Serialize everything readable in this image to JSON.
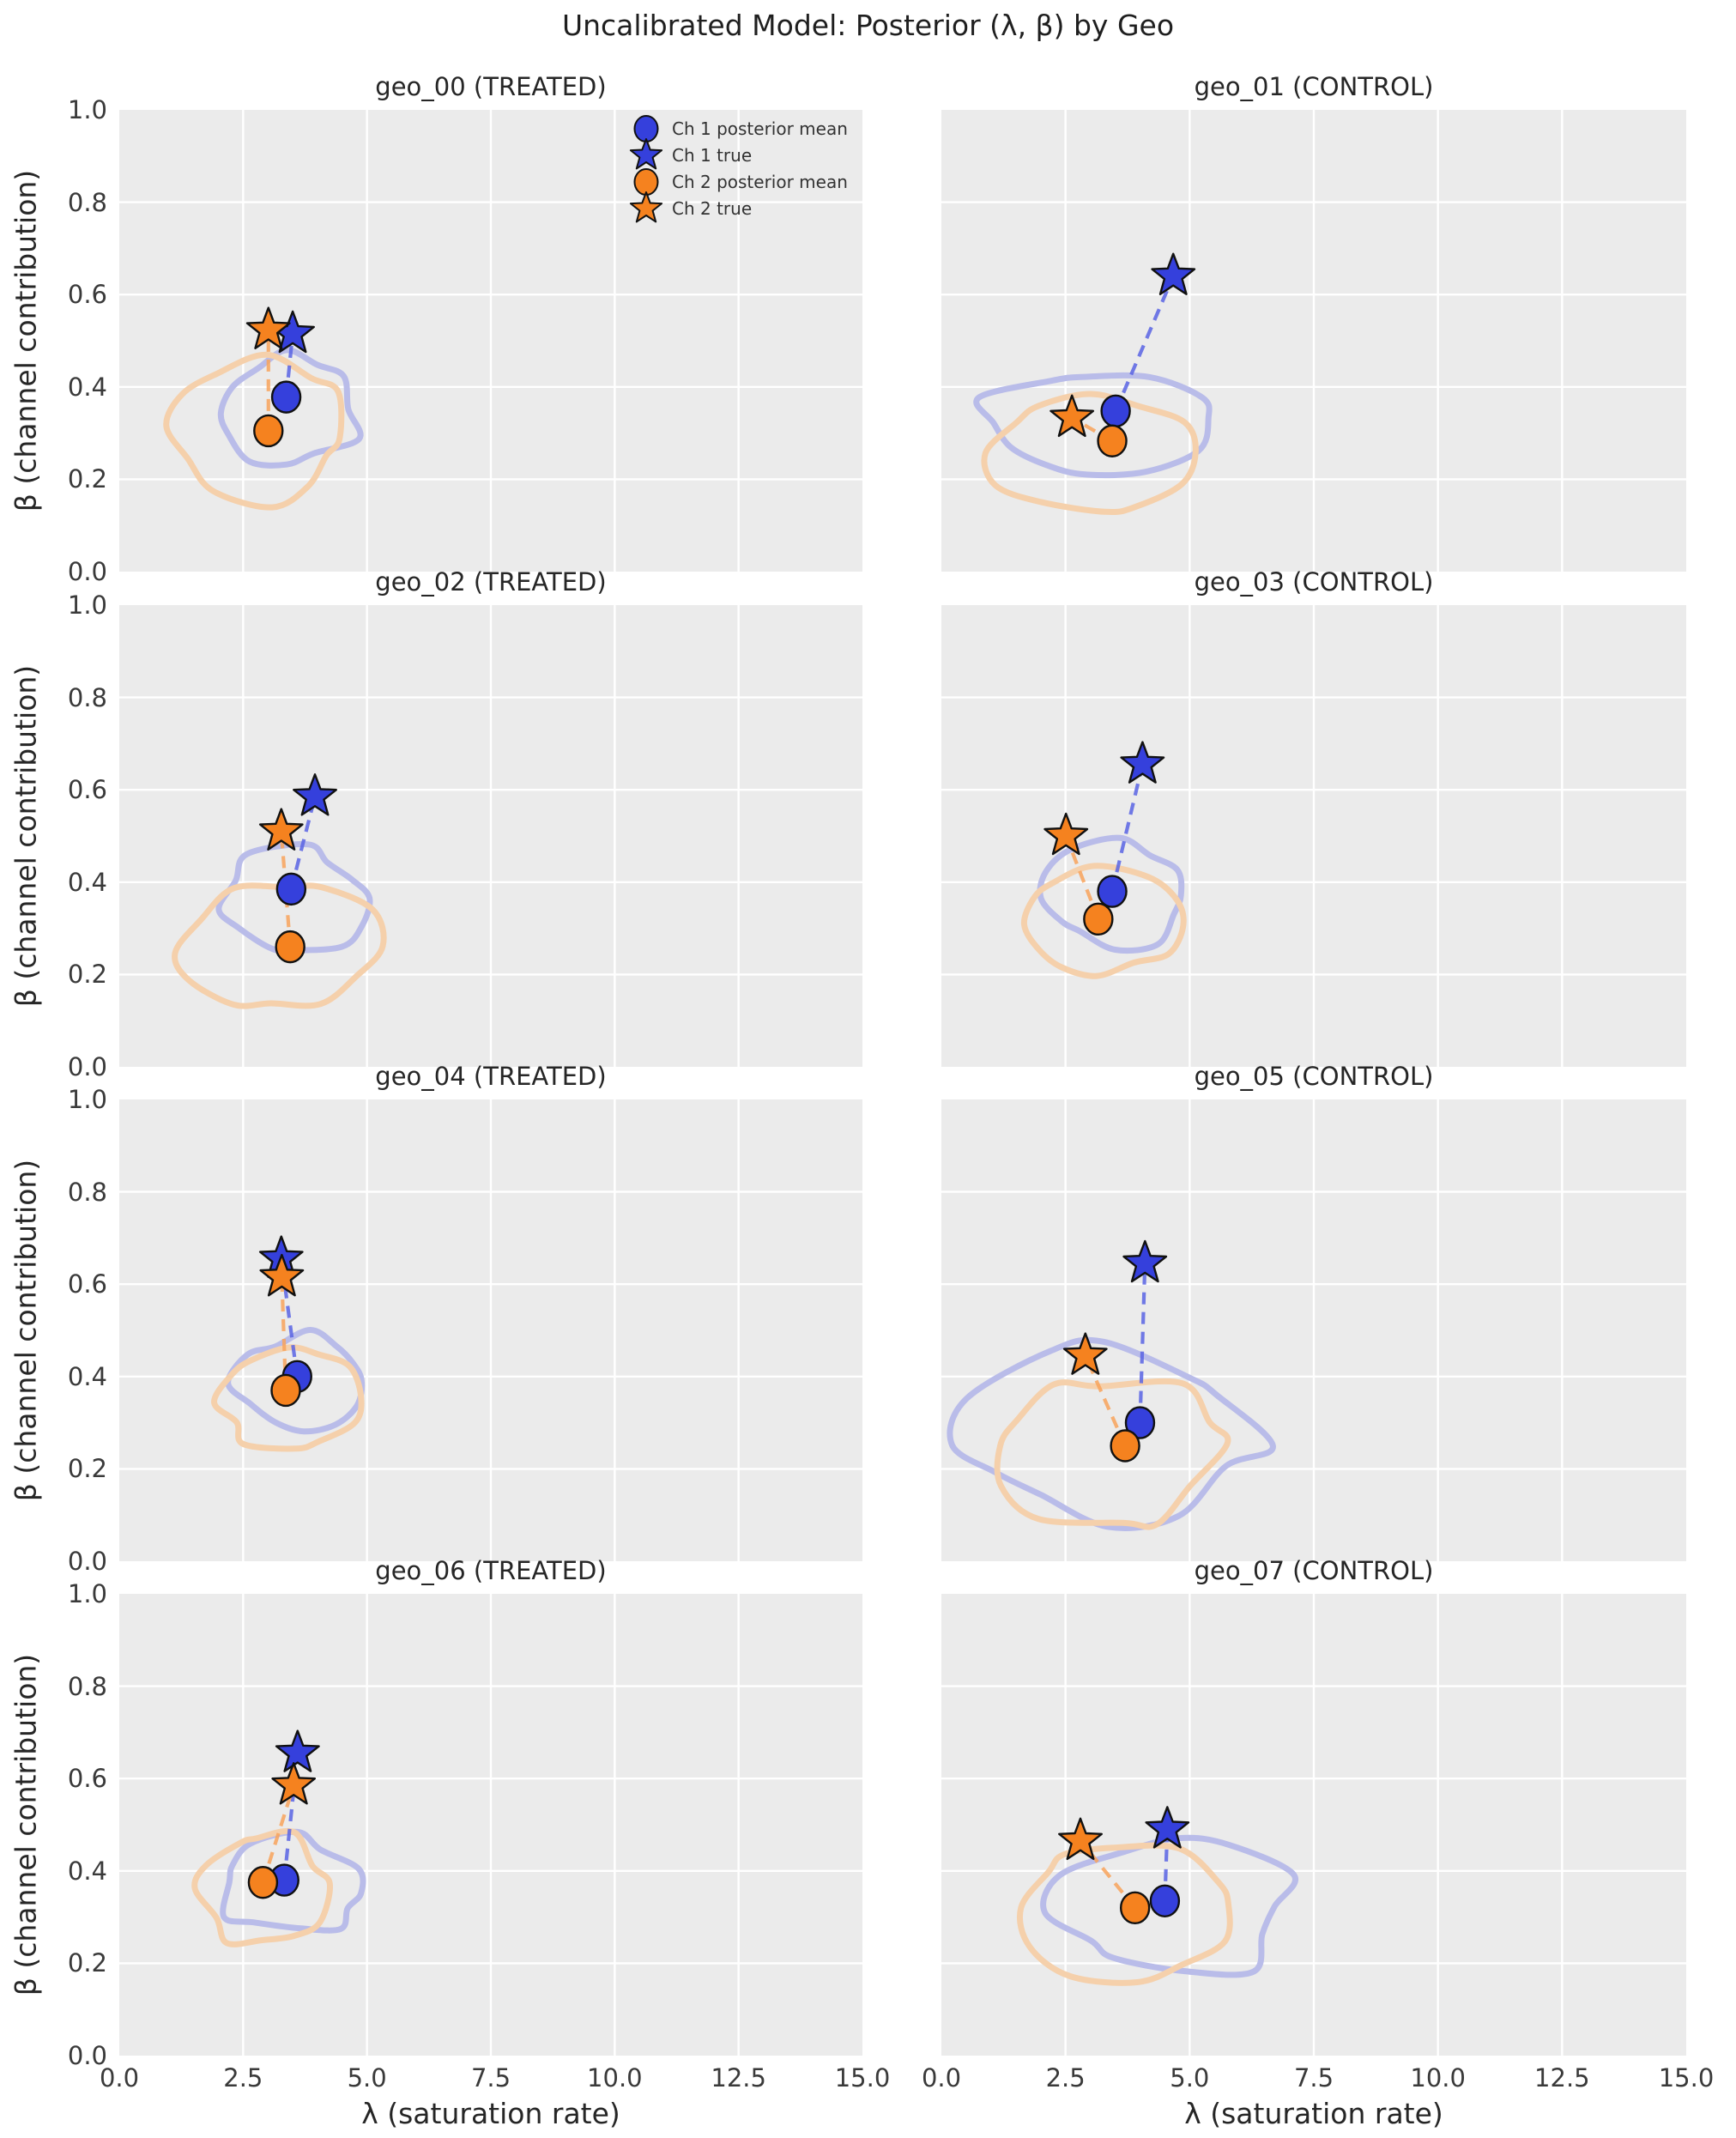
{
  "figure": {
    "title": "Uncalibrated Model: Posterior (λ, β) by Geo",
    "xlabel": "λ (saturation rate)",
    "ylabel": "β (channel contribution)",
    "xlim": [
      0,
      15
    ],
    "ylim": [
      0,
      1
    ],
    "xticks": [
      "0.0",
      "2.5",
      "5.0",
      "7.5",
      "10.0",
      "12.5",
      "15.0"
    ],
    "yticks": [
      "0.0",
      "0.2",
      "0.4",
      "0.6",
      "0.8",
      "1.0"
    ],
    "grid": true,
    "legend_position": "upper right of first subplot"
  },
  "legend": {
    "items": [
      {
        "label": "Ch 1 posterior mean",
        "marker": "circle",
        "channel": "ch1"
      },
      {
        "label": "Ch 1 true",
        "marker": "star",
        "channel": "ch1"
      },
      {
        "label": "Ch 2 posterior mean",
        "marker": "circle",
        "channel": "ch2"
      },
      {
        "label": "Ch 2 true",
        "marker": "star",
        "channel": "ch2"
      }
    ]
  },
  "colors": {
    "ch1": "#3540DC",
    "ch2": "#F5821F",
    "ch1_contour": "#B9BCE9",
    "ch2_contour": "#F5D0AB",
    "ch1_connector": "#5A64E4",
    "ch2_connector": "#F9A45C",
    "marker_edge": "#111111",
    "panel_background": "#EBEBEB",
    "gridline": "#FFFFFF"
  },
  "chart_data": [
    {
      "type": "scatter",
      "title": "geo_00 (TREATED)",
      "ch1": {
        "posterior_mean": [
          3.37,
          0.378
        ],
        "true": [
          3.5,
          0.515
        ],
        "contour_lambda": [
          2.0,
          4.85
        ],
        "contour_beta": [
          0.24,
          0.47
        ]
      },
      "ch2": {
        "posterior_mean": [
          3.01,
          0.305
        ],
        "true": [
          3.01,
          0.523
        ],
        "contour_lambda": [
          1.15,
          4.55
        ],
        "contour_beta": [
          0.16,
          0.45
        ]
      }
    },
    {
      "type": "scatter",
      "title": "geo_01 (CONTROL)",
      "ch1": {
        "posterior_mean": [
          3.51,
          0.348
        ],
        "true": [
          4.67,
          0.64
        ],
        "contour_lambda": [
          0.85,
          5.3
        ],
        "contour_beta": [
          0.2,
          0.44
        ]
      },
      "ch2": {
        "posterior_mean": [
          3.44,
          0.283
        ],
        "true": [
          2.63,
          0.333
        ],
        "contour_lambda": [
          1.0,
          5.1
        ],
        "contour_beta": [
          0.13,
          0.39
        ]
      }
    },
    {
      "type": "scatter",
      "title": "geo_02 (TREATED)",
      "ch1": {
        "posterior_mean": [
          3.47,
          0.385
        ],
        "true": [
          3.95,
          0.585
        ],
        "contour_lambda": [
          2.1,
          5.1
        ],
        "contour_beta": [
          0.245,
          0.47
        ]
      },
      "ch2": {
        "posterior_mean": [
          3.45,
          0.26
        ],
        "true": [
          3.27,
          0.51
        ],
        "contour_lambda": [
          1.1,
          5.25
        ],
        "contour_beta": [
          0.125,
          0.39
        ]
      }
    },
    {
      "type": "scatter",
      "title": "geo_03 (CONTROL)",
      "ch1": {
        "posterior_mean": [
          3.44,
          0.38
        ],
        "true": [
          4.05,
          0.655
        ],
        "contour_lambda": [
          2.0,
          4.95
        ],
        "contour_beta": [
          0.26,
          0.49
        ]
      },
      "ch2": {
        "posterior_mean": [
          3.16,
          0.32
        ],
        "true": [
          2.51,
          0.5
        ],
        "contour_lambda": [
          1.5,
          4.7
        ],
        "contour_beta": [
          0.195,
          0.42
        ]
      }
    },
    {
      "type": "scatter",
      "title": "geo_04 (TREATED)",
      "ch1": {
        "posterior_mean": [
          3.59,
          0.4
        ],
        "true": [
          3.27,
          0.655
        ],
        "contour_lambda": [
          2.3,
          5.05
        ],
        "contour_beta": [
          0.275,
          0.49
        ]
      },
      "ch2": {
        "posterior_mean": [
          3.36,
          0.37
        ],
        "true": [
          3.28,
          0.615
        ],
        "contour_lambda": [
          2.0,
          4.75
        ],
        "contour_beta": [
          0.245,
          0.46
        ]
      }
    },
    {
      "type": "scatter",
      "title": "geo_05 (CONTROL)",
      "ch1": {
        "posterior_mean": [
          4.0,
          0.3
        ],
        "true": [
          4.1,
          0.645
        ],
        "contour_lambda": [
          0.6,
          6.3
        ],
        "contour_beta": [
          0.1,
          0.45
        ]
      },
      "ch2": {
        "posterior_mean": [
          3.7,
          0.25
        ],
        "true": [
          2.9,
          0.445
        ],
        "contour_lambda": [
          1.2,
          5.6
        ],
        "contour_beta": [
          0.07,
          0.4
        ]
      }
    },
    {
      "type": "scatter",
      "title": "geo_06 (TREATED)",
      "ch1": {
        "posterior_mean": [
          3.33,
          0.38
        ],
        "true": [
          3.6,
          0.655
        ],
        "contour_lambda": [
          2.0,
          5.0
        ],
        "contour_beta": [
          0.26,
          0.47
        ]
      },
      "ch2": {
        "posterior_mean": [
          2.9,
          0.375
        ],
        "true": [
          3.52,
          0.585
        ],
        "contour_lambda": [
          1.7,
          4.1
        ],
        "contour_beta": [
          0.23,
          0.48
        ]
      }
    },
    {
      "type": "scatter",
      "title": "geo_07 (CONTROL)",
      "ch1": {
        "posterior_mean": [
          4.5,
          0.335
        ],
        "true": [
          4.55,
          0.49
        ],
        "contour_lambda": [
          2.4,
          7.0
        ],
        "contour_beta": [
          0.17,
          0.48
        ]
      },
      "ch2": {
        "posterior_mean": [
          3.9,
          0.32
        ],
        "true": [
          2.8,
          0.465
        ],
        "contour_lambda": [
          1.8,
          5.6
        ],
        "contour_beta": [
          0.17,
          0.45
        ]
      }
    }
  ]
}
